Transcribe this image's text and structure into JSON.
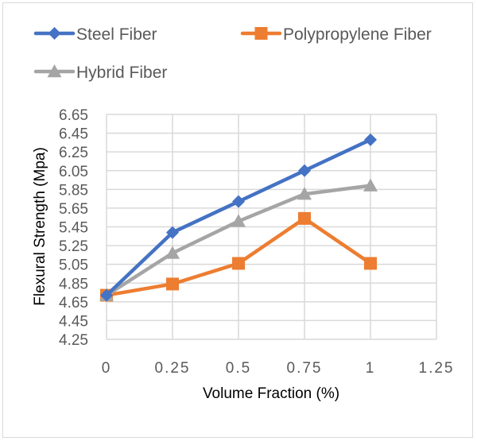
{
  "chart_data": {
    "type": "line",
    "title": "",
    "xlabel": "Volume Fraction (%)",
    "ylabel": "Flexural Strength (Mpa)",
    "xlim": [
      0,
      1.25
    ],
    "ylim": [
      4.25,
      6.65
    ],
    "x_ticks": [
      "0",
      "0.25",
      "0.5",
      "0.75",
      "1",
      "1.25"
    ],
    "x_tick_values": [
      0,
      0.25,
      0.5,
      0.75,
      1,
      1.25
    ],
    "y_ticks": [
      "6.65",
      "6.45",
      "6.25",
      "6.05",
      "5.85",
      "5.65",
      "5.45",
      "5.25",
      "5.05",
      "4.85",
      "4.65",
      "4.45",
      "4.25"
    ],
    "y_tick_values": [
      6.65,
      6.45,
      6.25,
      6.05,
      5.85,
      5.65,
      5.45,
      5.25,
      5.05,
      4.85,
      4.65,
      4.45,
      4.25
    ],
    "grid": "both",
    "legend_position": "top",
    "x": [
      0,
      0.25,
      0.5,
      0.75,
      1
    ],
    "series": [
      {
        "name": "Steel Fiber",
        "color": "#4472C4",
        "marker": "diamond",
        "values": [
          4.72,
          5.39,
          5.72,
          6.05,
          6.38
        ]
      },
      {
        "name": "Polypropylene Fiber",
        "color": "#ED7D31",
        "marker": "square",
        "values": [
          4.72,
          4.84,
          5.06,
          5.54,
          5.06
        ]
      },
      {
        "name": "Hybrid Fiber",
        "color": "#A5A5A5",
        "marker": "triangle",
        "values": [
          4.72,
          5.17,
          5.51,
          5.8,
          5.89
        ]
      }
    ]
  }
}
